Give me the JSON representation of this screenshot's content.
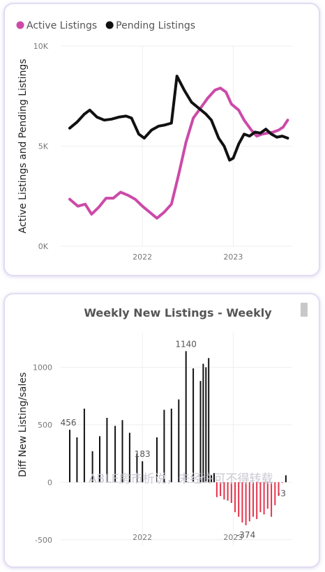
{
  "chart_data": [
    {
      "type": "line",
      "title": "",
      "legend": {
        "placement": "top-left",
        "items": [
          {
            "name": "Active Listings",
            "color": "#cc4aa8"
          },
          {
            "name": "Pending Listings",
            "color": "#111111"
          }
        ]
      },
      "ylabel": "Active Listings and Pending Listings",
      "xlabel": "",
      "ylim": [
        0,
        10000
      ],
      "yticks": [
        {
          "value": 0,
          "label": "0K"
        },
        {
          "value": 5000,
          "label": "5K"
        },
        {
          "value": 10000,
          "label": "10K"
        }
      ],
      "xticks": [
        {
          "value": 2022.0,
          "label": "2022"
        },
        {
          "value": 2023.0,
          "label": "2023"
        }
      ],
      "xlim": [
        2021.1,
        2023.65
      ],
      "grid": true,
      "series": [
        {
          "name": "Active Listings",
          "color": "#cc4aa8",
          "points": [
            [
              2021.2,
              2350
            ],
            [
              2021.29,
              2000
            ],
            [
              2021.37,
              2100
            ],
            [
              2021.44,
              1600
            ],
            [
              2021.52,
              1950
            ],
            [
              2021.6,
              2400
            ],
            [
              2021.68,
              2400
            ],
            [
              2021.76,
              2700
            ],
            [
              2021.84,
              2550
            ],
            [
              2021.92,
              2350
            ],
            [
              2022.0,
              2000
            ],
            [
              2022.08,
              1700
            ],
            [
              2022.16,
              1400
            ],
            [
              2022.24,
              1700
            ],
            [
              2022.32,
              2100
            ],
            [
              2022.4,
              3600
            ],
            [
              2022.48,
              5200
            ],
            [
              2022.56,
              6400
            ],
            [
              2022.64,
              6900
            ],
            [
              2022.72,
              7400
            ],
            [
              2022.8,
              7800
            ],
            [
              2022.86,
              7900
            ],
            [
              2022.92,
              7700
            ],
            [
              2022.98,
              7100
            ],
            [
              2023.06,
              6800
            ],
            [
              2023.12,
              6300
            ],
            [
              2023.2,
              5800
            ],
            [
              2023.26,
              5500
            ],
            [
              2023.32,
              5600
            ],
            [
              2023.38,
              5650
            ],
            [
              2023.44,
              5700
            ],
            [
              2023.5,
              5800
            ],
            [
              2023.55,
              5950
            ],
            [
              2023.6,
              6300
            ]
          ]
        },
        {
          "name": "Pending Listings",
          "color": "#111111",
          "points": [
            [
              2021.2,
              5900
            ],
            [
              2021.28,
              6200
            ],
            [
              2021.36,
              6600
            ],
            [
              2021.42,
              6800
            ],
            [
              2021.5,
              6450
            ],
            [
              2021.58,
              6300
            ],
            [
              2021.66,
              6350
            ],
            [
              2021.74,
              6450
            ],
            [
              2021.82,
              6500
            ],
            [
              2021.88,
              6400
            ],
            [
              2021.96,
              5600
            ],
            [
              2022.02,
              5400
            ],
            [
              2022.1,
              5800
            ],
            [
              2022.18,
              6000
            ],
            [
              2022.24,
              6050
            ],
            [
              2022.32,
              6150
            ],
            [
              2022.38,
              8500
            ],
            [
              2022.46,
              7800
            ],
            [
              2022.54,
              7200
            ],
            [
              2022.62,
              6900
            ],
            [
              2022.7,
              6600
            ],
            [
              2022.76,
              6300
            ],
            [
              2022.84,
              5400
            ],
            [
              2022.9,
              5000
            ],
            [
              2022.96,
              4300
            ],
            [
              2023.0,
              4400
            ],
            [
              2023.06,
              5100
            ],
            [
              2023.12,
              5600
            ],
            [
              2023.18,
              5500
            ],
            [
              2023.24,
              5700
            ],
            [
              2023.3,
              5650
            ],
            [
              2023.36,
              5850
            ],
            [
              2023.42,
              5600
            ],
            [
              2023.48,
              5450
            ],
            [
              2023.54,
              5500
            ],
            [
              2023.6,
              5400
            ]
          ]
        }
      ]
    },
    {
      "type": "bar",
      "title": "Weekly New Listings - Weekly",
      "xlabel": "",
      "ylabel": "Diff New Listing/sales",
      "ylim": [
        -550,
        1300
      ],
      "yticks": [
        {
          "value": -500,
          "label": "-500"
        },
        {
          "value": 0,
          "label": "0"
        },
        {
          "value": 500,
          "label": "500"
        },
        {
          "value": 1000,
          "label": "1000"
        }
      ],
      "xticks": [
        {
          "value": 2022.0,
          "label": "2022"
        },
        {
          "value": 2023.0,
          "label": "2023"
        }
      ],
      "xlim": [
        2021.1,
        2023.65
      ],
      "grid": true,
      "positive_color": "#111111",
      "negative_color": "#e5334b",
      "data_labels": [
        {
          "x": 2021.2,
          "value": 456,
          "label": "456"
        },
        {
          "x": 2022.0,
          "value": 183,
          "label": "183"
        },
        {
          "x": 2022.48,
          "value": 1140,
          "label": "1140"
        },
        {
          "x": 2023.14,
          "value": -374,
          "label": "-374"
        },
        {
          "x": 2023.55,
          "value": -3,
          "label": "-3"
        }
      ],
      "watermark": "ABLE房市析说，未经许可不得转载",
      "points": [
        [
          2021.2,
          456
        ],
        [
          2021.28,
          390
        ],
        [
          2021.36,
          640
        ],
        [
          2021.45,
          270
        ],
        [
          2021.53,
          400
        ],
        [
          2021.61,
          560
        ],
        [
          2021.7,
          490
        ],
        [
          2021.78,
          540
        ],
        [
          2021.86,
          430
        ],
        [
          2021.94,
          250
        ],
        [
          2022.0,
          183
        ],
        [
          2022.16,
          390
        ],
        [
          2022.24,
          630
        ],
        [
          2022.32,
          640
        ],
        [
          2022.4,
          720
        ],
        [
          2022.48,
          1140
        ],
        [
          2022.56,
          990
        ],
        [
          2022.64,
          880
        ],
        [
          2022.67,
          1030
        ],
        [
          2022.7,
          1000
        ],
        [
          2022.73,
          1080
        ],
        [
          2022.76,
          60
        ],
        [
          2022.79,
          80
        ],
        [
          2022.82,
          -130
        ],
        [
          2022.86,
          -120
        ],
        [
          2022.9,
          -150
        ],
        [
          2022.94,
          -160
        ],
        [
          2022.98,
          -180
        ],
        [
          2023.02,
          -260
        ],
        [
          2023.06,
          -300
        ],
        [
          2023.1,
          -350
        ],
        [
          2023.14,
          -374
        ],
        [
          2023.18,
          -340
        ],
        [
          2023.22,
          -300
        ],
        [
          2023.26,
          -320
        ],
        [
          2023.3,
          -260
        ],
        [
          2023.34,
          -280
        ],
        [
          2023.38,
          -230
        ],
        [
          2023.42,
          -300
        ],
        [
          2023.46,
          -200
        ],
        [
          2023.5,
          -120
        ],
        [
          2023.54,
          -3
        ],
        [
          2023.58,
          60
        ]
      ]
    }
  ]
}
